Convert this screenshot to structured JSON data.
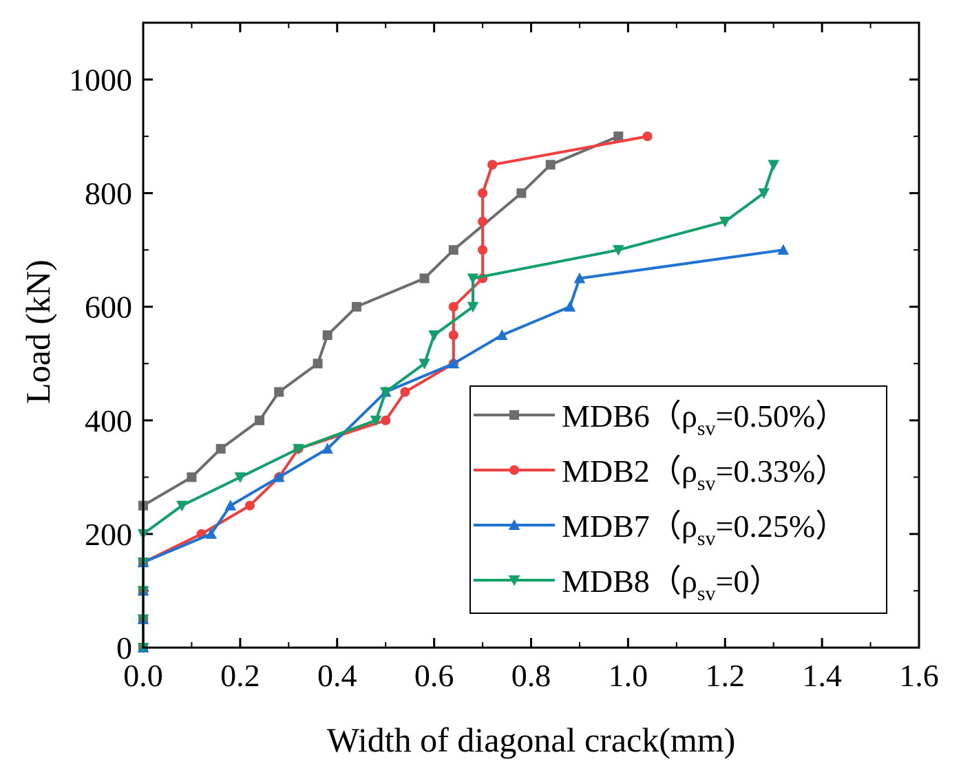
{
  "chart_data": {
    "type": "line",
    "xlabel": "Width of diagonal crack(mm)",
    "ylabel": "Load (kN)",
    "xlim": [
      0,
      1.6
    ],
    "ylim": [
      0,
      1100
    ],
    "xticks": [
      "0.0",
      "0.2",
      "0.4",
      "0.6",
      "0.8",
      "1.0",
      "1.2",
      "1.4",
      "1.6"
    ],
    "yticks": [
      "0",
      "200",
      "400",
      "600",
      "800",
      "1000"
    ],
    "legend_position": "bottom-right",
    "series": [
      {
        "name": "MDB6",
        "rho_text": "=0.50%",
        "color": "#6d6d6d",
        "marker": "square",
        "x": [
          0,
          0,
          0,
          0,
          0,
          0.1,
          0.16,
          0.24,
          0.28,
          0.36,
          0.38,
          0.44,
          0.58,
          0.64,
          0.78,
          0.84,
          0.98
        ],
        "y": [
          0,
          50,
          100,
          150,
          250,
          300,
          350,
          400,
          450,
          500,
          550,
          600,
          650,
          700,
          800,
          850,
          900
        ]
      },
      {
        "name": "MDB2",
        "rho_text": "=0.33%",
        "color": "#ef3f3f",
        "marker": "circle",
        "x": [
          0,
          0,
          0,
          0,
          0.12,
          0.22,
          0.28,
          0.32,
          0.5,
          0.54,
          0.64,
          0.64,
          0.64,
          0.7,
          0.7,
          0.7,
          0.7,
          0.72,
          1.04
        ],
        "y": [
          0,
          50,
          100,
          150,
          200,
          250,
          300,
          350,
          400,
          450,
          500,
          550,
          600,
          650,
          700,
          750,
          800,
          850,
          900
        ]
      },
      {
        "name": "MDB7",
        "rho_text": "=0.25%",
        "color": "#1f73d2",
        "marker": "triangle-up",
        "x": [
          0,
          0,
          0,
          0,
          0.14,
          0.18,
          0.28,
          0.38,
          0.5,
          0.64,
          0.74,
          0.88,
          0.9,
          1.32
        ],
        "y": [
          0,
          50,
          100,
          150,
          200,
          250,
          300,
          350,
          450,
          500,
          550,
          600,
          650,
          700
        ]
      },
      {
        "name": "MDB8",
        "rho_text": "=0",
        "color": "#13a06a",
        "marker": "triangle-down",
        "x": [
          0,
          0,
          0,
          0,
          0,
          0.08,
          0.2,
          0.32,
          0.48,
          0.5,
          0.58,
          0.6,
          0.68,
          0.68,
          0.98,
          1.2,
          1.28,
          1.3
        ],
        "y": [
          0,
          50,
          100,
          150,
          200,
          250,
          300,
          350,
          400,
          450,
          500,
          550,
          600,
          650,
          700,
          750,
          800,
          850
        ]
      }
    ]
  }
}
